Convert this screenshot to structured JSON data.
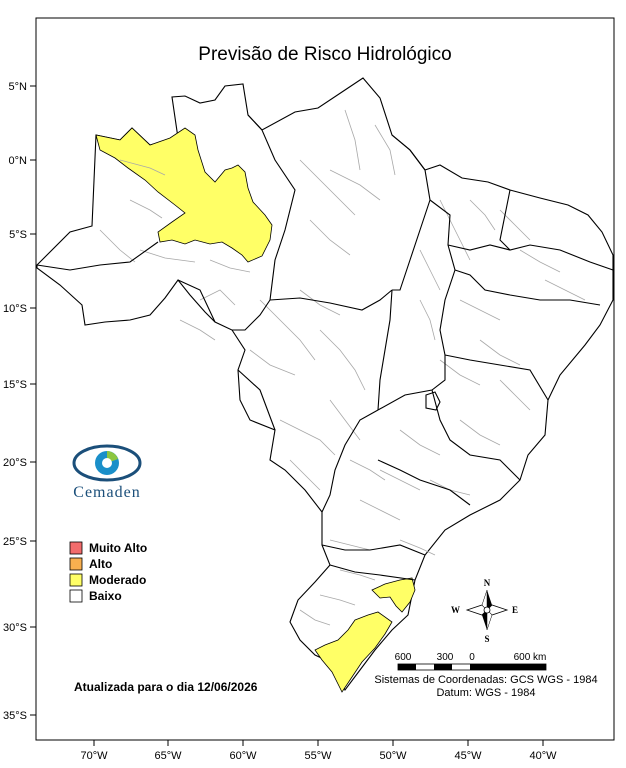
{
  "title": "Previsão de Risco Hidrológico",
  "lat_ticks": [
    "5°N",
    "0°N",
    "5°S",
    "10°S",
    "15°S",
    "20°S",
    "25°S",
    "30°S",
    "35°S"
  ],
  "lon_ticks": [
    "70°W",
    "65°W",
    "60°W",
    "55°W",
    "50°W",
    "45°W",
    "40°W"
  ],
  "legend": [
    {
      "label": "Muito Alto",
      "color": "#f26c6c"
    },
    {
      "label": "Alto",
      "color": "#f9b04f"
    },
    {
      "label": "Moderado",
      "color": "#ffff66"
    },
    {
      "label": "Baixo",
      "color": "#ffffff"
    }
  ],
  "risk_colors": {
    "moderado": "#ffff66"
  },
  "updated": "Atualizada para o dia 12/06/2026",
  "logo": {
    "text": "Cemaden",
    "icon": "cemaden-eye-logo"
  },
  "compass": {
    "n": "N",
    "s": "S",
    "e": "E",
    "w": "W"
  },
  "scale": {
    "labels": [
      "600",
      "300",
      "0",
      "600 km"
    ]
  },
  "datum": {
    "line1": "Sistemas de Coordenadas: GCS WGS - 1984",
    "line2": "Datum: WGS - 1984"
  }
}
